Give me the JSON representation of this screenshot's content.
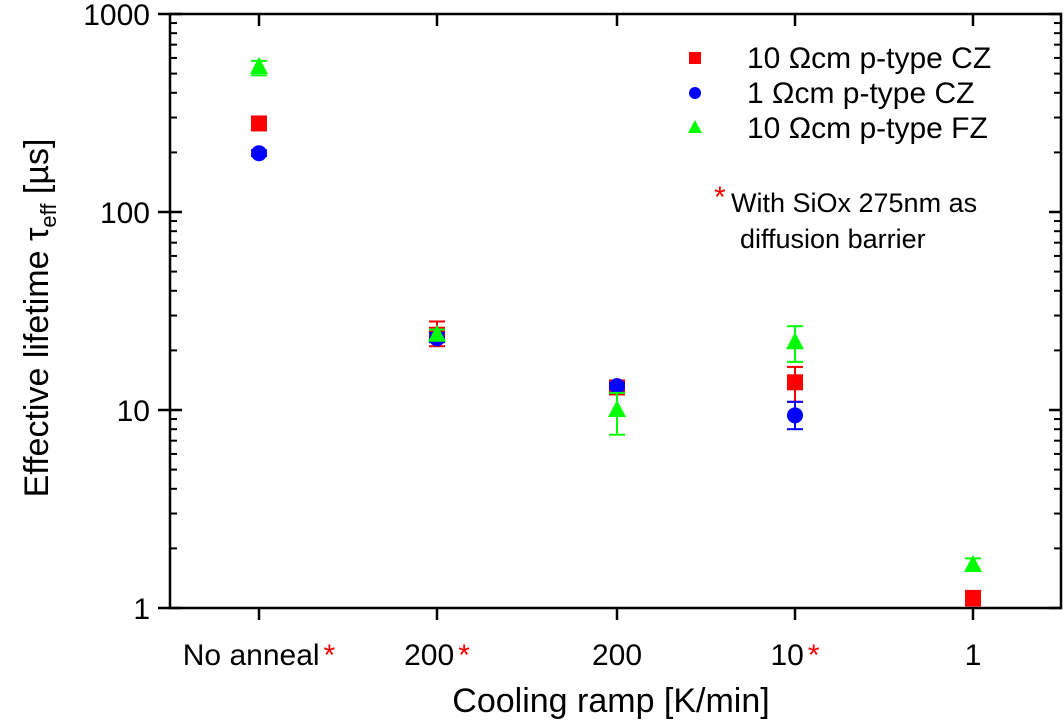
{
  "chart_data": {
    "type": "scatter",
    "title": "",
    "xlabel": "Cooling ramp [K/min]",
    "ylabel": {
      "main": "Effective lifetime ",
      "symbol": "τ",
      "subscript": "eff",
      "unit": " [µs]"
    },
    "yscale": "log",
    "ylim": [
      1,
      1000
    ],
    "yticks": [
      {
        "value": 1,
        "label": "1"
      },
      {
        "value": 10,
        "label": "10"
      },
      {
        "value": 100,
        "label": "100"
      },
      {
        "value": 1000,
        "label": "1000"
      }
    ],
    "categories": [
      {
        "label": "No anneal",
        "starred": true
      },
      {
        "label": "200",
        "starred": true
      },
      {
        "label": "200",
        "starred": false
      },
      {
        "label": "10",
        "starred": true
      },
      {
        "label": "1",
        "starred": false
      }
    ],
    "series": [
      {
        "name": "10 Ωcm p-type CZ",
        "marker": "square",
        "color": "#ff0000",
        "points": [
          {
            "x": 0,
            "y": 280,
            "lo": 270,
            "hi": 290
          },
          {
            "x": 1,
            "y": 24,
            "lo": 21,
            "hi": 28
          },
          {
            "x": 2,
            "y": 13,
            "lo": 12.3,
            "hi": 13.6
          },
          {
            "x": 3,
            "y": 13.8,
            "lo": 11,
            "hi": 16.5
          },
          {
            "x": 4,
            "y": 1.12,
            "lo": 1.03,
            "hi": 1.22
          }
        ]
      },
      {
        "name": "1 Ωcm p-type CZ",
        "marker": "circle",
        "color": "#0000ff",
        "points": [
          {
            "x": 0,
            "y": 198,
            "lo": 192,
            "hi": 205
          },
          {
            "x": 1,
            "y": 23,
            "lo": 22,
            "hi": 24.5
          },
          {
            "x": 2,
            "y": 13.2,
            "lo": 12.8,
            "hi": 13.7
          },
          {
            "x": 3,
            "y": 9.4,
            "lo": 8,
            "hi": 11
          }
        ]
      },
      {
        "name": "10 Ωcm p-type FZ",
        "marker": "triangle",
        "color": "#00ff00",
        "points": [
          {
            "x": 0,
            "y": 540,
            "lo": 490,
            "hi": 580
          },
          {
            "x": 1,
            "y": 24,
            "lo": 22.5,
            "hi": 25.5
          },
          {
            "x": 2,
            "y": 10,
            "lo": 7.5,
            "hi": 12.2
          },
          {
            "x": 3,
            "y": 22,
            "lo": 17.5,
            "hi": 26.5
          },
          {
            "x": 4,
            "y": 1.65,
            "lo": 1.55,
            "hi": 1.78
          }
        ]
      }
    ],
    "legend": {
      "placement": "top-right",
      "note_star": "*",
      "note_lines": [
        "With SiOx 275nm as",
        "diffusion barrier"
      ]
    },
    "grid": false
  }
}
